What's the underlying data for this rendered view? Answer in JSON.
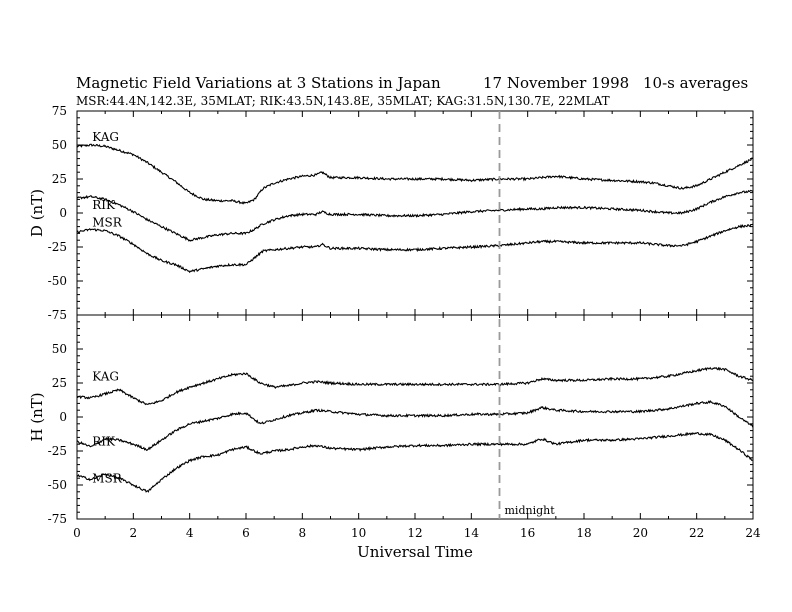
{
  "header": {
    "title": "Magnetic Field Variations at 3 Stations in Japan",
    "date": "17 November 1998",
    "averaging": "10-s averages",
    "stations_line": "MSR:44.4N,142.3E, 35MLAT;  RIK:43.5N,143.8E, 35MLAT;  KAG:31.5N,130.7E, 22MLAT"
  },
  "chart_data": [
    {
      "type": "line",
      "panel": "D",
      "ylabel": "D (nT)",
      "ylim": [
        -75,
        75
      ],
      "yticks": [
        -75,
        -50,
        -25,
        0,
        25,
        50,
        75
      ],
      "xlim": [
        0,
        24
      ],
      "xticks": [
        0,
        2,
        4,
        6,
        8,
        10,
        12,
        14,
        16,
        18,
        20,
        22,
        24
      ],
      "xlabel": "",
      "grid": false,
      "series": [
        {
          "name": "KAG",
          "label_at": [
            0.4,
            53
          ],
          "x": [
            0,
            0.5,
            1,
            1.5,
            2,
            2.5,
            3,
            3.5,
            4,
            4.5,
            5,
            5.5,
            6,
            6.3,
            6.6,
            7,
            7.5,
            8,
            8.5,
            8.7,
            9,
            10,
            11,
            12,
            13,
            14,
            15,
            16,
            16.5,
            17,
            18,
            19,
            20,
            20.5,
            21,
            21.5,
            22,
            22.5,
            23,
            23.5,
            24
          ],
          "values": [
            49,
            50,
            49,
            46,
            43,
            37,
            30,
            23,
            15,
            10,
            9,
            9,
            7,
            10,
            18,
            22,
            25,
            27,
            28,
            30,
            26,
            26,
            25,
            25,
            25,
            24,
            25,
            25,
            26,
            27,
            25,
            24,
            23,
            22,
            20,
            18,
            20,
            25,
            30,
            35,
            40
          ]
        },
        {
          "name": "RIK",
          "label_at": [
            0.4,
            3
          ],
          "x": [
            0,
            0.5,
            1,
            1.5,
            2,
            2.5,
            3,
            3.5,
            4,
            4.5,
            5,
            5.5,
            6,
            6.3,
            6.6,
            7,
            7.5,
            8,
            8.5,
            8.7,
            9,
            10,
            11,
            12,
            13,
            14,
            15,
            16,
            16.5,
            17,
            18,
            19,
            20,
            20.5,
            21,
            21.5,
            22,
            22.5,
            23,
            23.5,
            24
          ],
          "values": [
            11,
            12,
            10,
            6,
            1,
            -5,
            -10,
            -15,
            -20,
            -18,
            -16,
            -15,
            -15,
            -12,
            -8,
            -5,
            -2,
            -1,
            -1,
            1,
            -1,
            -1,
            -2,
            -2,
            -1,
            1,
            2,
            3,
            3,
            4,
            4,
            3,
            2,
            1,
            0,
            0,
            3,
            8,
            12,
            15,
            16
          ]
        },
        {
          "name": "MSR",
          "label_at": [
            0.4,
            -10
          ],
          "x": [
            0,
            0.5,
            1,
            1.5,
            2,
            2.5,
            3,
            3.5,
            4,
            4.5,
            5,
            5.5,
            6,
            6.3,
            6.6,
            7,
            7.5,
            8,
            8.5,
            8.7,
            9,
            10,
            11,
            12,
            13,
            14,
            15,
            16,
            16.5,
            17,
            18,
            19,
            20,
            20.5,
            21,
            21.5,
            22,
            22.5,
            23,
            23.5,
            24
          ],
          "values": [
            -14,
            -12,
            -13,
            -17,
            -23,
            -30,
            -35,
            -38,
            -43,
            -41,
            -39,
            -38,
            -38,
            -33,
            -28,
            -27,
            -26,
            -25,
            -25,
            -23,
            -26,
            -26,
            -27,
            -27,
            -26,
            -25,
            -24,
            -22,
            -21,
            -21,
            -22,
            -22,
            -22,
            -23,
            -24,
            -24,
            -21,
            -17,
            -13,
            -10,
            -9
          ]
        }
      ]
    },
    {
      "type": "line",
      "panel": "H",
      "ylabel": "H (nT)",
      "ylim": [
        -75,
        75
      ],
      "yticks": [
        -75,
        -50,
        -25,
        0,
        25,
        50,
        75
      ],
      "xlim": [
        0,
        24
      ],
      "xticks": [
        0,
        2,
        4,
        6,
        8,
        10,
        12,
        14,
        16,
        18,
        20,
        22,
        24
      ],
      "xlabel": "Universal Time",
      "grid": false,
      "annotation": {
        "text": "midnight",
        "x": 15
      },
      "series": [
        {
          "name": "KAG",
          "label_at": [
            0.4,
            27
          ],
          "x": [
            0,
            0.5,
            1,
            1.5,
            2,
            2.5,
            3,
            3.5,
            4,
            4.5,
            5,
            5.5,
            6,
            6.5,
            7,
            7.5,
            8,
            8.5,
            9,
            10,
            11,
            12,
            13,
            14,
            15,
            16,
            16.5,
            17,
            18,
            19,
            20,
            20.5,
            21,
            21.5,
            22,
            22.5,
            23,
            23.5,
            24
          ],
          "values": [
            15,
            14,
            17,
            20,
            14,
            9,
            12,
            18,
            22,
            25,
            28,
            31,
            32,
            25,
            22,
            23,
            25,
            26,
            25,
            24,
            24,
            24,
            24,
            24,
            24,
            25,
            28,
            27,
            27,
            28,
            28,
            29,
            30,
            32,
            34,
            36,
            35,
            30,
            27
          ]
        },
        {
          "name": "RIK",
          "label_at": [
            0.4,
            -21
          ],
          "x": [
            0,
            0.5,
            1,
            1.5,
            2,
            2.5,
            3,
            3.5,
            4,
            4.5,
            5,
            5.5,
            6,
            6.5,
            7,
            7.5,
            8,
            8.5,
            9,
            10,
            11,
            12,
            13,
            14,
            15,
            16,
            16.5,
            17,
            18,
            19,
            20,
            20.5,
            21,
            21.5,
            22,
            22.5,
            23,
            23.5,
            24
          ],
          "values": [
            -18,
            -22,
            -16,
            -17,
            -20,
            -24,
            -17,
            -10,
            -5,
            -3,
            -1,
            2,
            3,
            -5,
            -2,
            1,
            3,
            5,
            4,
            2,
            1,
            1,
            1,
            2,
            2,
            3,
            7,
            5,
            4,
            4,
            4,
            5,
            6,
            8,
            10,
            11,
            8,
            0,
            -7
          ]
        },
        {
          "name": "MSR",
          "label_at": [
            0.4,
            -48
          ],
          "x": [
            0,
            0.5,
            1,
            1.5,
            2,
            2.5,
            3,
            3.5,
            4,
            4.5,
            5,
            5.5,
            6,
            6.5,
            7,
            7.5,
            8,
            8.5,
            9,
            10,
            11,
            12,
            13,
            14,
            15,
            16,
            16.5,
            17,
            18,
            19,
            20,
            20.5,
            21,
            21.5,
            22,
            22.5,
            23,
            23.5,
            24
          ],
          "values": [
            -43,
            -46,
            -42,
            -45,
            -50,
            -55,
            -46,
            -38,
            -32,
            -29,
            -28,
            -24,
            -22,
            -27,
            -25,
            -24,
            -22,
            -21,
            -23,
            -24,
            -22,
            -21,
            -21,
            -20,
            -20,
            -20,
            -16,
            -20,
            -17,
            -17,
            -16,
            -15,
            -14,
            -13,
            -12,
            -13,
            -17,
            -24,
            -32
          ]
        }
      ]
    }
  ]
}
